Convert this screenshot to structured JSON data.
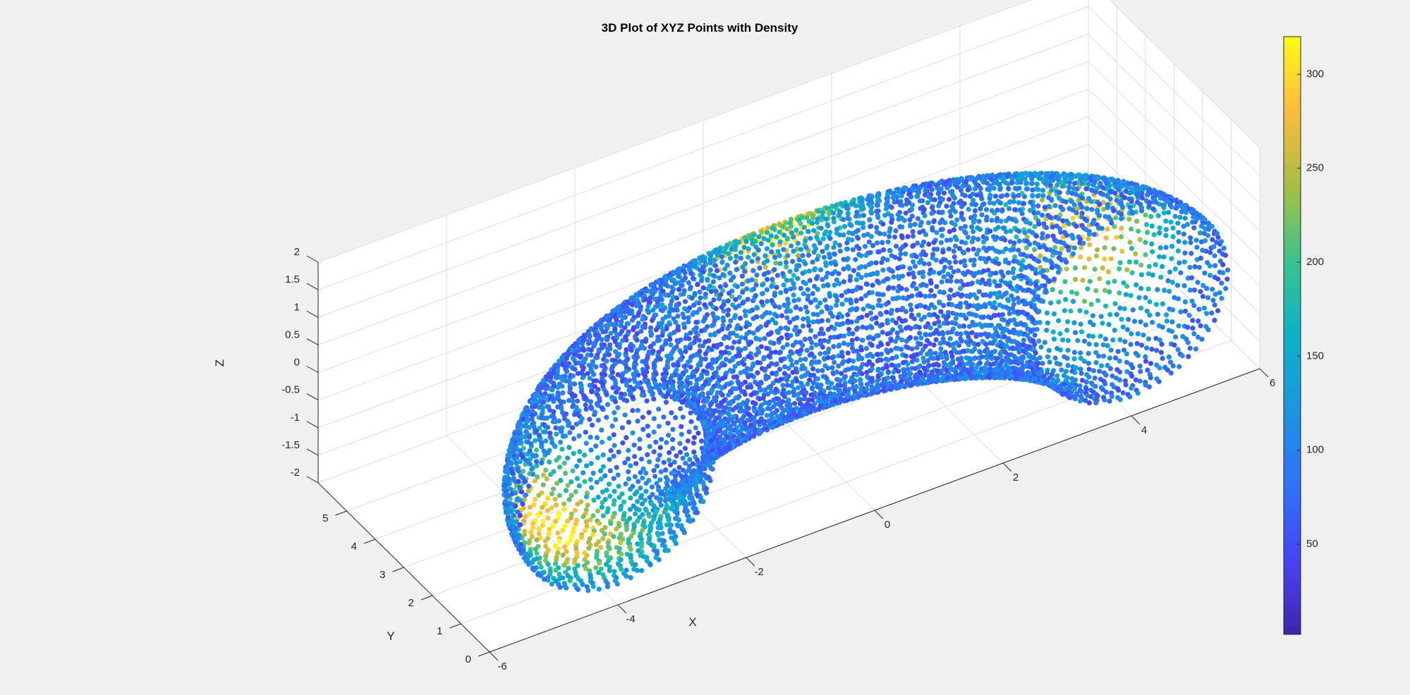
{
  "chart_data": {
    "type": "scatter",
    "subtype": "3d-scatter-colored",
    "title": "3D Plot of XYZ Points with Density",
    "xlabel": "X",
    "ylabel": "Y",
    "zlabel": "Z",
    "xlim": [
      -6,
      6
    ],
    "ylim": [
      0,
      6
    ],
    "zlim": [
      -2,
      2
    ],
    "x_ticks": [
      "-6",
      "-4",
      "-2",
      "0",
      "2",
      "4",
      "6"
    ],
    "y_ticks": [
      "0",
      "1",
      "2",
      "3",
      "4",
      "5"
    ],
    "z_ticks": [
      "-2",
      "-1.5",
      "-1",
      "-0.5",
      "0",
      "0.5",
      "1",
      "1.5",
      "2"
    ],
    "grid": true,
    "colormap": "parula",
    "colorbar": {
      "range": [
        2,
        320
      ],
      "ticks": [
        "50",
        "100",
        "150",
        "200",
        "250",
        "300"
      ],
      "location": "right"
    },
    "shape": {
      "kind": "half-torus",
      "major_radius": 4,
      "minor_radius": 1.5,
      "center": [
        0,
        0,
        0
      ],
      "y_range": [
        0,
        5.5
      ]
    },
    "high_density_regions": [
      {
        "x": -4,
        "y": 1.5,
        "z": -1,
        "density": 270
      },
      {
        "x": 4,
        "y": 2,
        "z": 0,
        "density": 260
      },
      {
        "x": 0,
        "y": 4,
        "z": 1.2,
        "density": 290
      }
    ],
    "colors": {
      "background": "#f0f0f0",
      "axes_background": "#ffffff",
      "grid": "#dcdcdc",
      "axis_line": "#262626"
    }
  }
}
